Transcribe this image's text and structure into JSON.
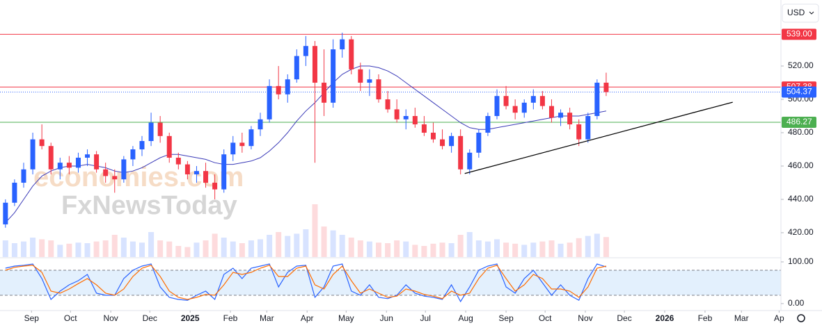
{
  "chart_data": {
    "type": "candlestick",
    "currency": "USD",
    "watermark": [
      "economies.com",
      "FxNewsToday"
    ],
    "x": [
      0,
      1,
      2,
      3,
      4,
      5,
      6,
      7,
      8,
      9,
      10,
      11,
      12,
      13,
      14,
      15,
      16,
      17,
      18,
      19,
      20,
      21,
      22,
      23,
      24,
      25,
      26,
      27,
      28,
      29,
      30,
      31,
      32,
      33,
      34,
      35,
      36,
      37,
      38,
      39,
      40,
      41,
      42,
      43,
      44,
      45,
      46,
      47,
      48,
      49,
      50,
      51,
      52,
      53,
      54,
      55,
      56,
      57,
      58,
      59,
      60,
      61,
      62,
      63,
      64,
      65,
      66
    ],
    "open": [
      425,
      438,
      450,
      458,
      476,
      472,
      458,
      462,
      459,
      465,
      467,
      458,
      454,
      452,
      464,
      470,
      475,
      486,
      478,
      465,
      461,
      455,
      457,
      450,
      446,
      467,
      474,
      472,
      482,
      488,
      508,
      503,
      512,
      526,
      532,
      510,
      498,
      530,
      536,
      518,
      510,
      512,
      500,
      494,
      488,
      490,
      485,
      480,
      476,
      472,
      478,
      458,
      468,
      480,
      490,
      502,
      496,
      492,
      498,
      502,
      496,
      489,
      492,
      485,
      476,
      490,
      510
    ],
    "high": [
      440,
      452,
      462,
      480,
      485,
      474,
      465,
      466,
      468,
      470,
      469,
      462,
      458,
      466,
      472,
      478,
      492,
      490,
      480,
      468,
      463,
      460,
      462,
      455,
      470,
      478,
      480,
      484,
      492,
      512,
      520,
      515,
      530,
      538,
      535,
      530,
      536,
      540,
      538,
      522,
      518,
      515,
      505,
      500,
      494,
      495,
      490,
      486,
      482,
      480,
      482,
      470,
      482,
      492,
      506,
      508,
      500,
      500,
      506,
      505,
      500,
      494,
      495,
      488,
      492,
      512,
      516
    ],
    "low": [
      423,
      436,
      447,
      455,
      470,
      455,
      452,
      455,
      456,
      460,
      456,
      450,
      444,
      450,
      460,
      466,
      472,
      474,
      462,
      458,
      452,
      450,
      447,
      440,
      444,
      463,
      468,
      470,
      478,
      486,
      500,
      498,
      510,
      520,
      462,
      490,
      495,
      525,
      515,
      505,
      502,
      498,
      492,
      486,
      482,
      483,
      478,
      474,
      470,
      468,
      455,
      455,
      465,
      478,
      488,
      494,
      488,
      489,
      494,
      494,
      486,
      484,
      482,
      472,
      474,
      488,
      502
    ],
    "close": [
      438,
      450,
      458,
      476,
      472,
      458,
      462,
      459,
      465,
      467,
      458,
      454,
      452,
      464,
      470,
      475,
      486,
      478,
      465,
      461,
      455,
      457,
      450,
      446,
      467,
      474,
      472,
      482,
      488,
      508,
      503,
      512,
      526,
      532,
      510,
      498,
      530,
      536,
      518,
      510,
      512,
      500,
      494,
      488,
      490,
      485,
      480,
      476,
      472,
      478,
      458,
      468,
      480,
      490,
      502,
      496,
      492,
      498,
      502,
      496,
      489,
      492,
      485,
      476,
      490,
      510,
      504.37
    ],
    "up_color": "#2962ff",
    "down_color": "#f23645",
    "xlim": [
      -0.6,
      85.2
    ],
    "xticks": [
      {
        "value": 2.86,
        "label": "Sep"
      },
      {
        "value": 7.14,
        "label": "Oct"
      },
      {
        "value": 11.57,
        "label": "Nov"
      },
      {
        "value": 15.86,
        "label": "Dec"
      },
      {
        "value": 20.29,
        "label": "2025"
      },
      {
        "value": 24.71,
        "label": "Feb"
      },
      {
        "value": 28.71,
        "label": "Mar"
      },
      {
        "value": 33.14,
        "label": "Apr"
      },
      {
        "value": 37.43,
        "label": "May"
      },
      {
        "value": 41.86,
        "label": "Jun"
      },
      {
        "value": 46.14,
        "label": "Jul"
      },
      {
        "value": 50.57,
        "label": "Aug"
      },
      {
        "value": 55,
        "label": "Sep"
      },
      {
        "value": 59.29,
        "label": "Oct"
      },
      {
        "value": 63.71,
        "label": "Nov"
      },
      {
        "value": 68,
        "label": "Dec"
      },
      {
        "value": 72.43,
        "label": "2026"
      },
      {
        "value": 76.86,
        "label": "Feb"
      },
      {
        "value": 80.86,
        "label": "Mar"
      },
      {
        "value": 85.0,
        "label": "Ap"
      }
    ],
    "ylim": [
      405.4,
      559.6
    ],
    "yticks": [
      {
        "value": 420,
        "label": "420.00"
      },
      {
        "value": 440,
        "label": "440.00"
      },
      {
        "value": 460,
        "label": "460.00"
      },
      {
        "value": 480,
        "label": "480.00"
      },
      {
        "value": 500,
        "label": "500.00"
      },
      {
        "value": 520,
        "label": "520.00"
      }
    ],
    "grid": false,
    "levels": [
      {
        "value": 539,
        "label": "539.00",
        "color": "#f23645",
        "style": "solid"
      },
      {
        "value": 507.38,
        "label": "507.38",
        "color": "#f23645",
        "style": "solid"
      },
      {
        "value": 504.37,
        "label": "504.37",
        "color": "#2962ff",
        "style": "dotted"
      },
      {
        "value": 486.27,
        "label": "486.27",
        "color": "#4caf50",
        "style": "solid"
      }
    ],
    "trendline": {
      "color": "#000000",
      "x": [
        50.46,
        79.9
      ],
      "y": [
        455.5,
        498.3
      ]
    },
    "ma": {
      "color": "#3a3ab8",
      "values": [
        426,
        432,
        440,
        448,
        454,
        457,
        459,
        460,
        460,
        461,
        460,
        459,
        457,
        456,
        457,
        459,
        462,
        465,
        467,
        467,
        466,
        465,
        464,
        462,
        461,
        461,
        462,
        463,
        465,
        469,
        474,
        480,
        487,
        493,
        498,
        504,
        510,
        515,
        518,
        520,
        520,
        519,
        517,
        514,
        510,
        506,
        502,
        498,
        494,
        490,
        486,
        483,
        482,
        482,
        483,
        484,
        485,
        486,
        487,
        488,
        489,
        490,
        490,
        490,
        491,
        492,
        493
      ]
    },
    "volume": {
      "ylim": [
        0,
        100
      ],
      "values": [
        30,
        25,
        28,
        35,
        32,
        30,
        22,
        24,
        26,
        25,
        28,
        30,
        40,
        35,
        28,
        26,
        45,
        30,
        28,
        20,
        18,
        26,
        30,
        42,
        35,
        28,
        25,
        30,
        32,
        40,
        45,
        38,
        42,
        50,
        95,
        55,
        48,
        40,
        35,
        30,
        28,
        26,
        25,
        30,
        28,
        22,
        20,
        24,
        26,
        25,
        40,
        45,
        30,
        28,
        32,
        26,
        24,
        22,
        26,
        28,
        30,
        24,
        26,
        34,
        38,
        42,
        36
      ]
    },
    "stoch": {
      "ylim": [
        -16.7,
        108.3
      ],
      "yticks": [
        {
          "value": 100,
          "label": "100.00"
        },
        {
          "value": 0,
          "label": "0.00"
        }
      ],
      "band": [
        20,
        80
      ],
      "band_color": "#e3f0fd",
      "series": [
        {
          "color": "#2962ff",
          "values": [
            85,
            90,
            92,
            95,
            60,
            10,
            30,
            45,
            55,
            70,
            25,
            20,
            20,
            60,
            80,
            90,
            95,
            40,
            15,
            10,
            8,
            20,
            30,
            10,
            70,
            85,
            60,
            85,
            90,
            95,
            40,
            75,
            90,
            92,
            15,
            40,
            90,
            95,
            30,
            20,
            45,
            15,
            12,
            20,
            45,
            25,
            18,
            15,
            10,
            45,
            5,
            40,
            80,
            90,
            95,
            40,
            25,
            60,
            80,
            50,
            20,
            45,
            20,
            8,
            60,
            95,
            88
          ]
        },
        {
          "color": "#ff6d00",
          "values": [
            80,
            87,
            90,
            92,
            75,
            30,
            25,
            35,
            48,
            60,
            45,
            25,
            20,
            35,
            65,
            85,
            92,
            65,
            30,
            15,
            10,
            15,
            22,
            20,
            45,
            75,
            70,
            75,
            85,
            92,
            65,
            65,
            85,
            90,
            45,
            35,
            70,
            90,
            55,
            25,
            35,
            25,
            15,
            18,
            35,
            30,
            22,
            18,
            12,
            30,
            20,
            25,
            60,
            85,
            92,
            60,
            30,
            45,
            70,
            60,
            35,
            35,
            30,
            15,
            40,
            85,
            90
          ]
        }
      ]
    }
  }
}
